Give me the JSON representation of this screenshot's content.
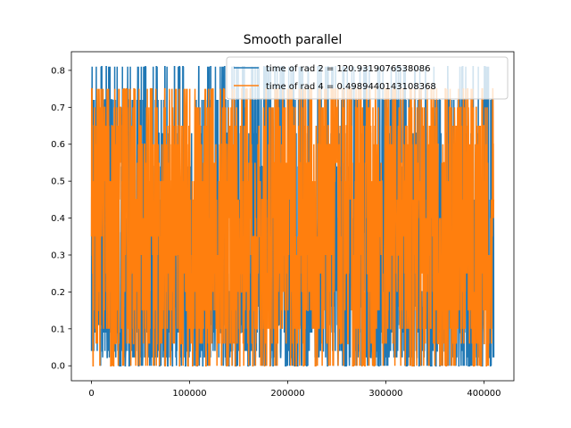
{
  "chart_data": {
    "type": "line",
    "title": "Smooth parallel",
    "xlabel": "",
    "ylabel": "",
    "xlim": [
      -20500,
      430500
    ],
    "ylim": [
      -0.0405,
      0.8505
    ],
    "xticks": [
      0,
      100000,
      200000,
      300000,
      400000
    ],
    "xtick_labels": [
      "0",
      "100000",
      "200000",
      "300000",
      "400000"
    ],
    "yticks": [
      0.0,
      0.1,
      0.2,
      0.3,
      0.4,
      0.5,
      0.6,
      0.7,
      0.8
    ],
    "ytick_labels": [
      "0.0",
      "0.1",
      "0.2",
      "0.3",
      "0.4",
      "0.5",
      "0.6",
      "0.7",
      "0.8"
    ],
    "grid": false,
    "legend_position": "top-right",
    "series": [
      {
        "name": "time of rad 2 = 120.9319076538086",
        "color": "#1f77b4",
        "x_range": [
          0,
          410000
        ],
        "min": 0.0,
        "max": 0.81,
        "levels": [
          0.0,
          0.0225,
          0.04,
          0.09,
          0.11,
          0.16,
          0.2025,
          0.25,
          0.36,
          0.4,
          0.45,
          0.54,
          0.63,
          0.72,
          0.81
        ]
      },
      {
        "name": "time of rad 4 = 0.4989440143108368",
        "color": "#ff7f0e",
        "x_range": [
          0,
          410000
        ],
        "min": 0.0,
        "max": 0.75,
        "levels": [
          0.0,
          0.06,
          0.1,
          0.15,
          0.2,
          0.25,
          0.3,
          0.35,
          0.4,
          0.45,
          0.5,
          0.55,
          0.6,
          0.65,
          0.7,
          0.75
        ]
      }
    ]
  }
}
